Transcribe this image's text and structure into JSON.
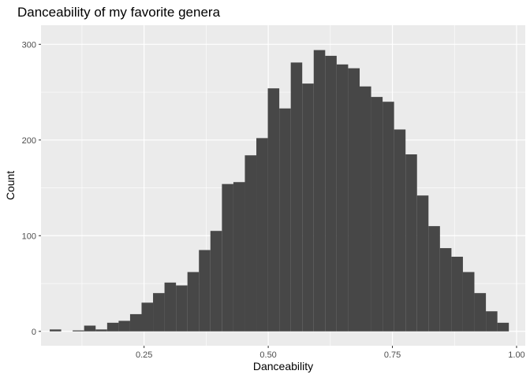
{
  "chart_data": {
    "type": "bar",
    "title": "Danceability of my favorite genera",
    "xlabel": "Danceability",
    "ylabel": "Count",
    "xlim": [
      0.0425,
      1.0175
    ],
    "ylim": [
      -15,
      320
    ],
    "x_ticks": [
      0.25,
      0.5,
      0.75,
      1.0
    ],
    "x_tick_labels": [
      "0.25",
      "0.50",
      "0.75",
      "1.00"
    ],
    "y_ticks": [
      0,
      100,
      200,
      300
    ],
    "y_tick_labels": [
      "0",
      "100",
      "200",
      "300"
    ],
    "bin_width": 0.02311,
    "bin_centers": [
      0.0716,
      0.0947,
      0.1178,
      0.1409,
      0.164,
      0.1872,
      0.2103,
      0.2334,
      0.2565,
      0.2796,
      0.3027,
      0.3258,
      0.3489,
      0.372,
      0.3951,
      0.4183,
      0.4414,
      0.4645,
      0.4876,
      0.5107,
      0.5338,
      0.5569,
      0.58,
      0.6031,
      0.6262,
      0.6493,
      0.6725,
      0.6956,
      0.7187,
      0.7418,
      0.7649,
      0.788,
      0.8111,
      0.8342,
      0.8573,
      0.8804,
      0.9035,
      0.9267,
      0.9498,
      0.9729
    ],
    "values": [
      2,
      0,
      1,
      6,
      2,
      9,
      11,
      18,
      30,
      40,
      51,
      48,
      62,
      85,
      105,
      154,
      156,
      184,
      202,
      254,
      233,
      281,
      259,
      294,
      288,
      279,
      275,
      256,
      245,
      240,
      211,
      185,
      142,
      110,
      87,
      78,
      62,
      40,
      21,
      9
    ],
    "panel_background": "#EBEBEB",
    "bar_color": "#474747",
    "grid": true,
    "grid_color": "#FFFFFF",
    "legend": "none"
  }
}
